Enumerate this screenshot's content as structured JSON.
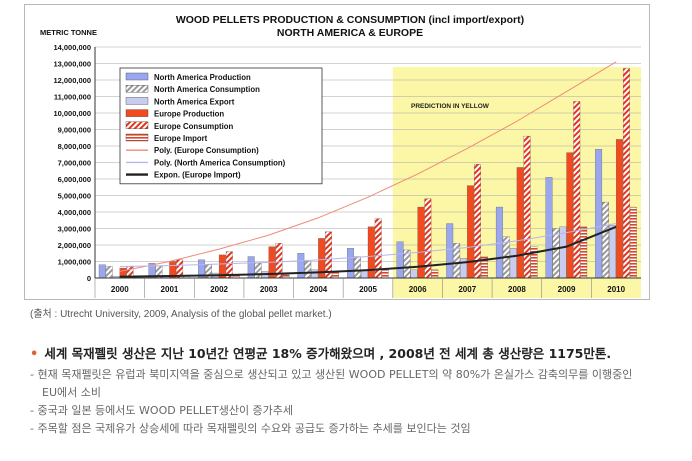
{
  "chart_data": {
    "type": "bar",
    "title": "WOOD PELLETS PRODUCTION & CONSUMPTION (incl import/export)",
    "subtitle": "NORTH AMERICA & EUROPE",
    "ylabel": "METRIC TONNE",
    "xlabel": "",
    "ylim": [
      0,
      14000000
    ],
    "yticks": [
      "0",
      "1,000,000",
      "2,000,000",
      "3,000,000",
      "4,000,000",
      "5,000,000",
      "6,000,000",
      "7,000,000",
      "8,000,000",
      "9,000,000",
      "10,000,000",
      "11,000,000",
      "12,000,000",
      "13,000,000",
      "14,000,000"
    ],
    "categories": [
      "2000",
      "2001",
      "2002",
      "2003",
      "2004",
      "2005",
      "2006",
      "2007",
      "2008",
      "2009",
      "2010"
    ],
    "grid": true,
    "legend_position": "top-left",
    "prediction_label": "PREDICTION IN YELLOW",
    "prediction_from": "2006",
    "prediction_color": "#fbf7a6",
    "series": [
      {
        "name": "North America Production",
        "pattern": "solid",
        "color": "#9aa6ee",
        "values": [
          800000,
          900000,
          1100000,
          1300000,
          1500000,
          1800000,
          2200000,
          3300000,
          4300000,
          6100000,
          7800000
        ]
      },
      {
        "name": "North America Consumption",
        "pattern": "hatch",
        "color": "#9a9a9a",
        "values": [
          700000,
          750000,
          800000,
          900000,
          1000000,
          1300000,
          1700000,
          2100000,
          2500000,
          3000000,
          4600000
        ]
      },
      {
        "name": "North America Export",
        "pattern": "solid",
        "color": "#c9cbef",
        "values": [
          100000,
          150000,
          300000,
          400000,
          500000,
          500000,
          500000,
          1200000,
          1800000,
          3100000,
          3200000
        ]
      },
      {
        "name": "Europe Production",
        "pattern": "solid",
        "color": "#f2491e",
        "values": [
          600000,
          1000000,
          1400000,
          1900000,
          2400000,
          3100000,
          4300000,
          5600000,
          6700000,
          7600000,
          8400000
        ]
      },
      {
        "name": "Europe Consumption",
        "pattern": "hatch",
        "color": "#e8321c",
        "values": [
          700000,
          1100000,
          1600000,
          2100000,
          2800000,
          3600000,
          4800000,
          6900000,
          8600000,
          10700000,
          12700000
        ]
      },
      {
        "name": "Europe Import",
        "pattern": "stripe",
        "color": "#d9462a",
        "values": [
          100000,
          100000,
          200000,
          200000,
          400000,
          500000,
          500000,
          1300000,
          1900000,
          3100000,
          4300000
        ]
      }
    ],
    "trendlines": [
      {
        "name": "Poly. (Europe Consumption)",
        "color": "#f08a78",
        "width": 1,
        "values": [
          400000,
          1000000,
          1750000,
          2600000,
          3650000,
          4900000,
          6300000,
          7850000,
          9500000,
          11300000,
          13100000
        ]
      },
      {
        "name": "Poly. (North America Consumption)",
        "color": "#b6b6ee",
        "width": 1,
        "values": [
          700000,
          750000,
          850000,
          950000,
          1100000,
          1300000,
          1550000,
          1850000,
          2250000,
          2750000,
          3300000
        ]
      },
      {
        "name": "Expon. (Europe Import)",
        "color": "#222222",
        "width": 2,
        "values": [
          80000,
          120000,
          170000,
          240000,
          340000,
          480000,
          680000,
          960000,
          1350000,
          1900000,
          3100000
        ]
      }
    ]
  },
  "caption": "(출처 : Utrecht University, 2009, Analysis of the global pellet market.)",
  "headline": "세계 목재펠릿 생산은 지난 10년간 연평균 18% 증가해왔으며 , 2008년 전 세계 총 생산량은 1175만톤.",
  "notes": [
    "- 현재 목재펠릿은 유럽과 북미지역을 중심으로 생산되고 있고 생산된 WOOD PELLET의 약 80%가 온실가스 감축의무를 이행중인",
    "EU에서 소비",
    "- 중국과 일본 등에서도 WOOD PELLET생산이 증가추세",
    "- 주목할 점은 국제유가 상승세에 따라 목재펠릿의 수요와 공급도 증가하는 추세를 보인다는 것임"
  ]
}
